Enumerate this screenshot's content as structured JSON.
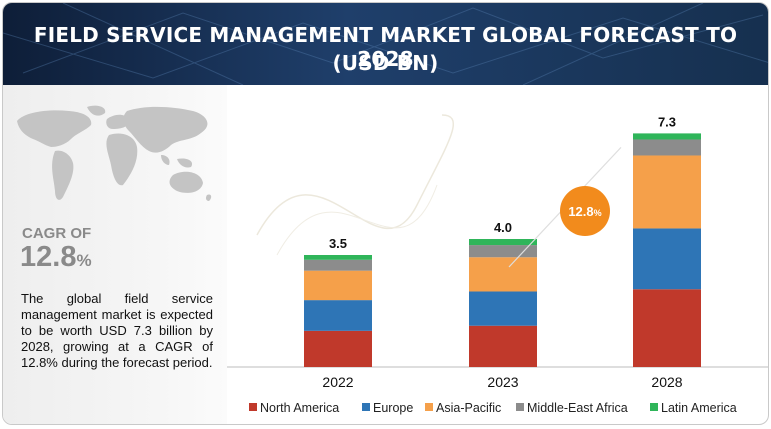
{
  "header": {
    "title_line1": "FIELD SERVICE MANAGEMENT MARKET GLOBAL FORECAST TO 2028",
    "title_line2": "(USD BN)"
  },
  "sidebar": {
    "cagr_label": "CAGR OF",
    "cagr_value": "12.8",
    "cagr_unit": "%",
    "description": "The global field service management market is expected to be worth USD 7.3 billion by 2028, growing at a CAGR of 12.8% during the forecast period."
  },
  "colors": {
    "banner": "#1f3f6b",
    "north_america": "#c0392b",
    "europe": "#2e75b6",
    "asia_pacific": "#f5a04a",
    "middle_east_africa": "#8c8c8c",
    "latin_america": "#2fb55a",
    "cagr_badge": "#f28b1c"
  },
  "chart_data": {
    "type": "bar",
    "stacked": true,
    "categories": [
      "2022",
      "2023",
      "2028"
    ],
    "totals": [
      "3.5",
      "4.0",
      "7.3"
    ],
    "total_values": [
      3.5,
      4.0,
      7.3
    ],
    "series": [
      {
        "name": "North America",
        "color": "#c0392b",
        "values": [
          1.13,
          1.29,
          2.43
        ]
      },
      {
        "name": "Europe",
        "color": "#2e75b6",
        "values": [
          0.96,
          1.07,
          1.9
        ]
      },
      {
        "name": "Asia-Pacific",
        "color": "#f5a04a",
        "values": [
          0.92,
          1.07,
          2.28
        ]
      },
      {
        "name": "Middle-East Africa",
        "color": "#8c8c8c",
        "values": [
          0.34,
          0.38,
          0.5
        ]
      },
      {
        "name": "Latin America",
        "color": "#2fb55a",
        "values": [
          0.15,
          0.19,
          0.19
        ]
      }
    ],
    "ylim": [
      0,
      8
    ],
    "annotation": {
      "value": "12.8",
      "unit": "%"
    },
    "legend_position": "bottom",
    "grid": false
  }
}
